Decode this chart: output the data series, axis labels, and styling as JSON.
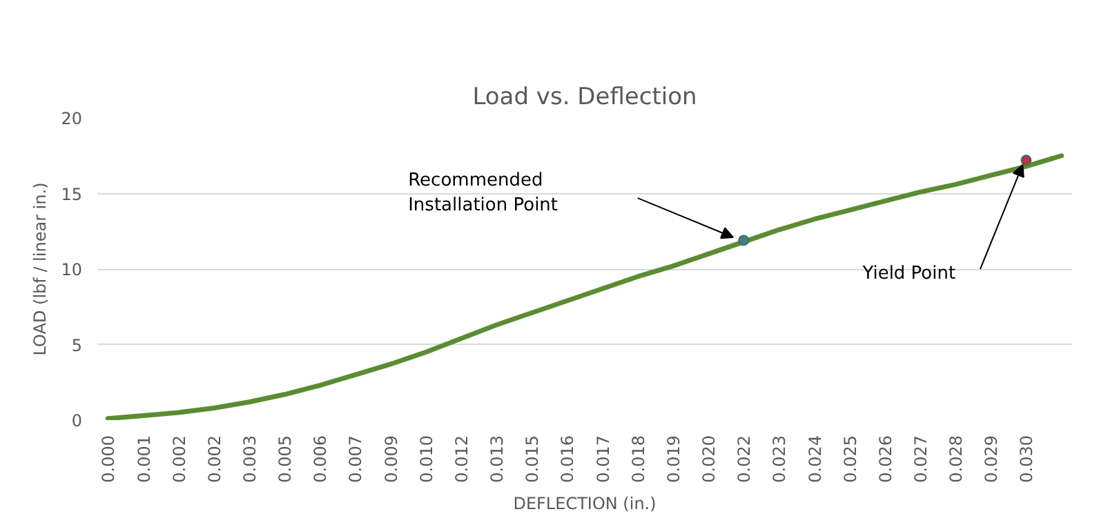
{
  "chart_data": {
    "type": "line",
    "title": "Load vs. Deflection",
    "xlabel": "DEFLECTION (in.)",
    "ylabel": "LOAD (lbf / linear in.)",
    "categories": [
      "0.000",
      "0.001",
      "0.002",
      "0.002",
      "0.003",
      "0.005",
      "0.006",
      "0.007",
      "0.009",
      "0.010",
      "0.012",
      "0.013",
      "0.015",
      "0.016",
      "0.017",
      "0.018",
      "0.019",
      "0.020",
      "0.022",
      "0.023",
      "0.024",
      "0.025",
      "0.026",
      "0.027",
      "0.028",
      "0.029",
      "0.030",
      null
    ],
    "series": [
      {
        "color": "#5b8c32",
        "values": [
          0.1,
          0.3,
          0.5,
          0.8,
          1.2,
          1.7,
          2.3,
          3.0,
          3.7,
          4.5,
          5.4,
          6.3,
          7.1,
          7.9,
          8.7,
          9.5,
          10.2,
          11.0,
          11.8,
          12.6,
          13.3,
          13.9,
          14.5,
          15.1,
          15.6,
          16.2,
          16.8,
          17.5
        ]
      },
      {
        "type": "scatter",
        "color": "#3f7f8f",
        "x": [
          "0.022"
        ],
        "values": [
          11.9
        ]
      },
      {
        "type": "scatter",
        "color": "#c0304a",
        "x": [
          "0.030"
        ],
        "values": [
          17.2
        ]
      }
    ],
    "ylim": [
      0,
      20
    ],
    "yticks": [
      0,
      5,
      10,
      15,
      20
    ],
    "grid": "y",
    "line_style": "solid",
    "annotations": [
      "Recommended Installation Point",
      "Yield Point"
    ]
  }
}
